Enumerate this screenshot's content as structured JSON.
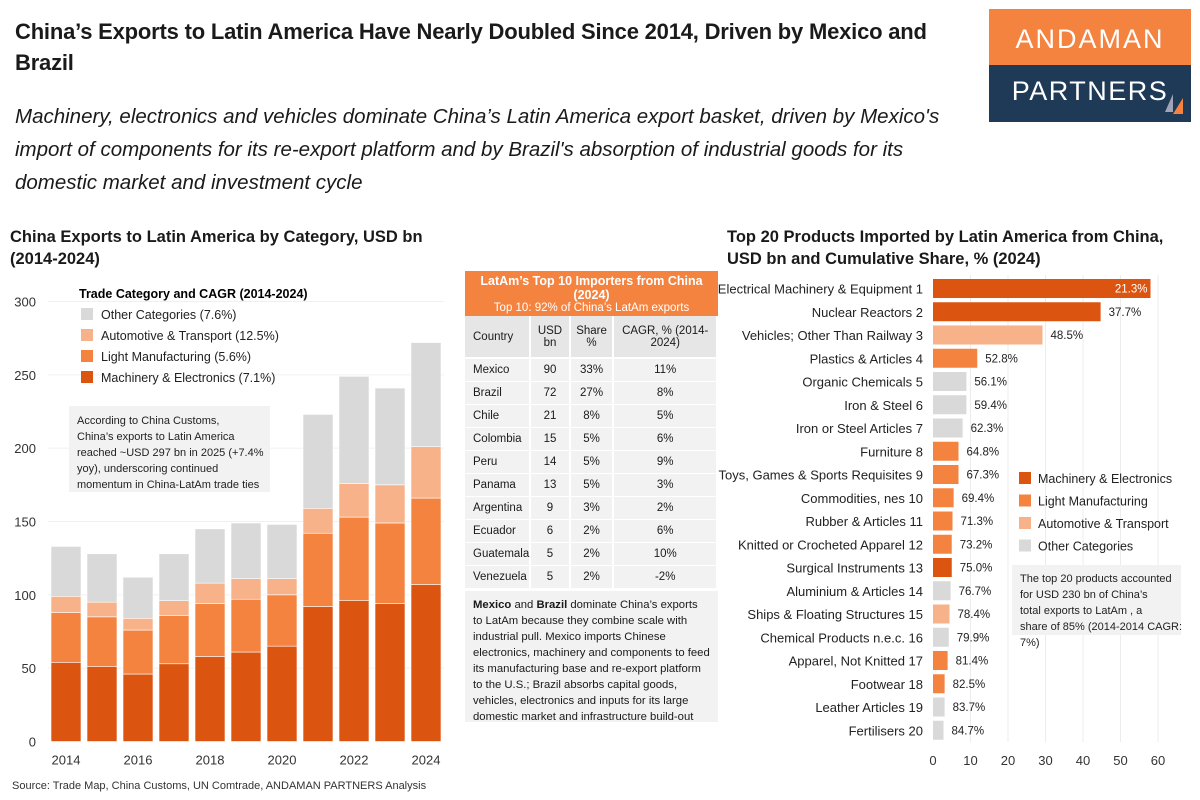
{
  "header": {
    "title": "China’s Exports to Latin America Have Nearly Doubled Since 2014, Driven by Mexico and Brazil",
    "subtitle": "Machinery, electronics and vehicles dominate China’s Latin America export basket, driven by Mexico's import of components for its re-export platform and by Brazil's absorption of industrial goods for its domestic market and investment cycle"
  },
  "logo": {
    "line1": "ANDAMAN",
    "line2": "PARTNERS",
    "colors": {
      "top": "#f58340",
      "bottom": "#1e3a56"
    }
  },
  "colors": {
    "machinery": "#dc5510",
    "light": "#f58340",
    "auto": "#f7b28a",
    "other": "#d9d9d9"
  },
  "chart_data": [
    {
      "type": "bar",
      "stacked": true,
      "title": "China Exports to Latin America by Category, USD bn (2014-2024)",
      "legend_title": "Trade Category and CAGR (2014-2024)",
      "legend_placement": "top-left",
      "categories": [
        "2014",
        "2015",
        "2016",
        "2017",
        "2018",
        "2019",
        "2020",
        "2021",
        "2022",
        "2023",
        "2024"
      ],
      "x_tick_labels": [
        "2014",
        "2016",
        "2018",
        "2020",
        "2022",
        "2024"
      ],
      "ylim": [
        0,
        300
      ],
      "y_ticks": [
        0,
        50,
        100,
        150,
        200,
        250,
        300
      ],
      "grid": true,
      "series": [
        {
          "name": "Machinery & Electronics (7.1%)",
          "key": "machinery",
          "values": [
            54,
            51,
            46,
            53,
            58,
            61,
            65,
            92,
            96,
            94,
            107
          ]
        },
        {
          "name": "Light Manufacturing (5.6%)",
          "key": "light",
          "values": [
            34,
            34,
            30,
            33,
            36,
            36,
            35,
            50,
            57,
            55,
            59
          ]
        },
        {
          "name": "Automotive & Transport (12.5%)",
          "key": "auto",
          "values": [
            11,
            10,
            8,
            10,
            14,
            14,
            11,
            17,
            23,
            26,
            35
          ]
        },
        {
          "name": "Other Categories (7.6%)",
          "key": "other",
          "values": [
            34,
            33,
            28,
            32,
            37,
            38,
            37,
            64,
            73,
            66,
            71
          ]
        }
      ],
      "annotation": "According to China Customs, China’s exports to Latin America reached ~USD 297 bn in 2025 (+7.4% yoy), underscoring continued momentum in China-LatAm trade ties"
    },
    {
      "type": "bar",
      "orientation": "horizontal",
      "title": "Top 20 Products Imported by Latin America from China, USD bn and Cumulative Share, % (2024)",
      "xlim": [
        0,
        60
      ],
      "x_ticks": [
        0,
        10,
        20,
        30,
        40,
        50,
        60
      ],
      "grid": true,
      "legend_placement": "right",
      "legend": [
        {
          "name": "Machinery & Electronics",
          "key": "machinery"
        },
        {
          "name": "Light Manufacturing",
          "key": "light"
        },
        {
          "name": "Automotive & Transport",
          "key": "auto"
        },
        {
          "name": "Other Categories",
          "key": "other"
        }
      ],
      "items": [
        {
          "label": "Electrical Machinery & Equipment 1",
          "value": 58.0,
          "cum": "21.3%",
          "cat": "machinery"
        },
        {
          "label": "Nuclear Reactors 2",
          "value": 44.7,
          "cum": "37.7%",
          "cat": "machinery"
        },
        {
          "label": "Vehicles; Other Than Railway 3",
          "value": 29.2,
          "cum": "48.5%",
          "cat": "auto"
        },
        {
          "label": "Plastics & Articles 4",
          "value": 11.8,
          "cum": "52.8%",
          "cat": "light"
        },
        {
          "label": "Organic Chemicals 5",
          "value": 8.9,
          "cum": "56.1%",
          "cat": "other"
        },
        {
          "label": "Iron & Steel 6",
          "value": 8.9,
          "cum": "59.4%",
          "cat": "other"
        },
        {
          "label": "Iron or Steel Articles 7",
          "value": 7.9,
          "cum": "62.3%",
          "cat": "other"
        },
        {
          "label": "Furniture 8",
          "value": 6.8,
          "cum": "64.8%",
          "cat": "light"
        },
        {
          "label": "Toys, Games & Sports Requisites 9",
          "value": 6.8,
          "cum": "67.3%",
          "cat": "light"
        },
        {
          "label": "Commodities, nes 10",
          "value": 5.5,
          "cum": "69.4%",
          "cat": "light"
        },
        {
          "label": "Rubber & Articles 11",
          "value": 5.2,
          "cum": "71.3%",
          "cat": "light"
        },
        {
          "label": "Knitted or Crocheted Apparel 12",
          "value": 5.0,
          "cum": "73.2%",
          "cat": "light"
        },
        {
          "label": "Surgical Instruments 13",
          "value": 5.0,
          "cum": "75.0%",
          "cat": "machinery"
        },
        {
          "label": "Aluminium & Articles 14",
          "value": 4.7,
          "cum": "76.7%",
          "cat": "other"
        },
        {
          "label": "Ships & Floating Structures 15",
          "value": 4.4,
          "cum": "78.4%",
          "cat": "auto"
        },
        {
          "label": "Chemical Products n.e.c. 16",
          "value": 4.2,
          "cum": "79.9%",
          "cat": "other"
        },
        {
          "label": "Apparel, Not Knitted 17",
          "value": 3.9,
          "cum": "81.4%",
          "cat": "light"
        },
        {
          "label": "Footwear 18",
          "value": 3.1,
          "cum": "82.5%",
          "cat": "light"
        },
        {
          "label": "Leather Articles 19",
          "value": 3.1,
          "cum": "83.7%",
          "cat": "other"
        },
        {
          "label": "Fertilisers 20",
          "value": 2.8,
          "cum": "84.7%",
          "cat": "other"
        }
      ],
      "annotation": "The top 20 products accounted for USD 230 bn of China’s total exports to LatAm , a share of 85% (2014-2014 CAGR: 7%)"
    }
  ],
  "table": {
    "title": "LatAm’s Top 10 Importers from China (2024)",
    "subtitle": "Top 10: 92% of China’s LatAm exports",
    "columns": [
      "Country",
      "USD bn",
      "Share %",
      "CAGR, % (2014-2024)"
    ],
    "rows": [
      [
        "Mexico",
        "90",
        "33%",
        "11%"
      ],
      [
        "Brazil",
        "72",
        "27%",
        "8%"
      ],
      [
        "Chile",
        "21",
        "8%",
        "5%"
      ],
      [
        "Colombia",
        "15",
        "5%",
        "6%"
      ],
      [
        "Peru",
        "14",
        "5%",
        "9%"
      ],
      [
        "Panama",
        "13",
        "5%",
        "3%"
      ],
      [
        "Argentina",
        "9",
        "3%",
        "2%"
      ],
      [
        "Ecuador",
        "6",
        "2%",
        "6%"
      ],
      [
        "Guatemala",
        "5",
        "2%",
        "10%"
      ],
      [
        "Venezuela",
        "5",
        "2%",
        "-2%"
      ]
    ],
    "note": {
      "b1": "Mexico",
      "t1": " and ",
      "b2": "Brazil",
      "t2": " dominate China’s exports to LatAm because they combine scale with industrial pull. Mexico imports Chinese electronics, machinery and components to feed its manufacturing base and re-export platform to the U.S.; Brazil absorbs capital goods, vehicles, electronics and inputs for its large domestic market and infrastructure build-out"
    }
  },
  "source": "Source: Trade Map, China Customs, UN Comtrade, ANDAMAN PARTNERS Analysis"
}
